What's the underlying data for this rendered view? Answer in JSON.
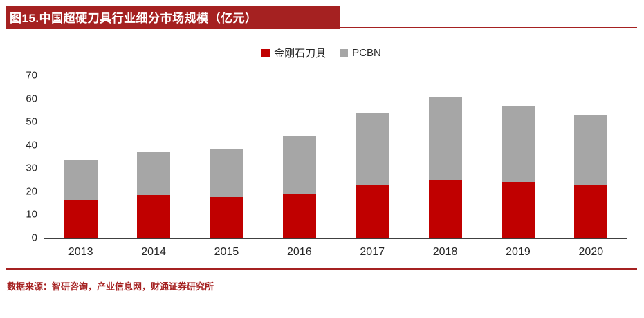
{
  "header": {
    "title": "图15.中国超硬刀具行业细分市场规模（亿元）"
  },
  "chart_data": {
    "type": "bar",
    "stacked": true,
    "title": "图15.中国超硬刀具行业细分市场规模（亿元）",
    "categories": [
      "2013",
      "2014",
      "2015",
      "2016",
      "2017",
      "2018",
      "2019",
      "2020"
    ],
    "series": [
      {
        "name": "金刚石刀具",
        "color": "#C00000",
        "values": [
          16.5,
          18.5,
          17.5,
          19,
          23,
          25,
          24,
          22.5
        ]
      },
      {
        "name": "PCBN",
        "color": "#A6A6A6",
        "values": [
          17.3,
          18.5,
          21,
          24.7,
          30.5,
          35.8,
          32.7,
          30.5
        ]
      }
    ],
    "totals": [
      33.8,
      37,
      38.5,
      43.7,
      53.5,
      60.8,
      56.7,
      53
    ],
    "xlabel": "",
    "ylabel": "",
    "ylim": [
      0,
      70
    ],
    "yticks": [
      0,
      10,
      20,
      30,
      40,
      50,
      60,
      70
    ],
    "grid": false,
    "legend_position": "top"
  },
  "footer": {
    "source": "数据来源：智研咨询，产业信息网，财通证券研究所"
  },
  "colors": {
    "accent": "#A52121",
    "bar_red": "#C00000",
    "bar_gray": "#A6A6A6",
    "axis_text": "#262626"
  }
}
